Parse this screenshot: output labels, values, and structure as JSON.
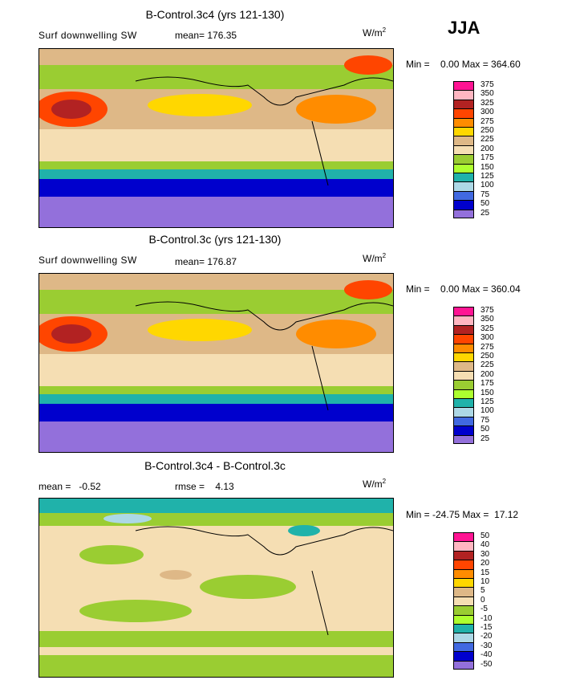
{
  "season": "JJA",
  "panels": [
    {
      "title": "B-Control.3c4 (yrs 121-130)",
      "left_label": "Surf downwelling SW",
      "mean_text": "mean= 176.35",
      "units_base": "W/m",
      "units_exp": "2",
      "range_text": "Min =    0.00 Max = 364.60",
      "legend": [
        "375",
        "350",
        "325",
        "300",
        "275",
        "250",
        "225",
        "200",
        "175",
        "150",
        "125",
        "100",
        "75",
        "50",
        "25"
      ],
      "colors": [
        "#ff1493",
        "#ffb6c1",
        "#b22222",
        "#ff4500",
        "#ff8c00",
        "#ffd700",
        "#deb887",
        "#f5deb3",
        "#9acd32",
        "#adff2f",
        "#20b2aa",
        "#add8e6",
        "#4169e1",
        "#0000cd",
        "#9370db"
      ]
    },
    {
      "title": "B-Control.3c (yrs 121-130)",
      "left_label": "Surf downwelling SW",
      "mean_text": "mean= 176.87",
      "units_base": "W/m",
      "units_exp": "2",
      "range_text": "Min =    0.00 Max = 360.04",
      "legend": [
        "375",
        "350",
        "325",
        "300",
        "275",
        "250",
        "225",
        "200",
        "175",
        "150",
        "125",
        "100",
        "75",
        "50",
        "25"
      ],
      "colors": [
        "#ff1493",
        "#ffb6c1",
        "#b22222",
        "#ff4500",
        "#ff8c00",
        "#ffd700",
        "#deb887",
        "#f5deb3",
        "#9acd32",
        "#adff2f",
        "#20b2aa",
        "#add8e6",
        "#4169e1",
        "#0000cd",
        "#9370db"
      ]
    },
    {
      "title": "B-Control.3c4 - B-Control.3c",
      "left_label": "mean =   -0.52",
      "mean_text": "rmse =    4.13",
      "units_base": "W/m",
      "units_exp": "2",
      "range_text": "Min = -24.75 Max =  17.12",
      "legend": [
        "50",
        "40",
        "30",
        "20",
        "15",
        "10",
        "5",
        "0",
        "-5",
        "-10",
        "-15",
        "-20",
        "-30",
        "-40",
        "-50"
      ],
      "colors": [
        "#ff1493",
        "#ffb6c1",
        "#b22222",
        "#ff4500",
        "#ff8c00",
        "#ffd700",
        "#deb887",
        "#f5deb3",
        "#9acd32",
        "#adff2f",
        "#20b2aa",
        "#add8e6",
        "#4169e1",
        "#0000cd",
        "#9370db"
      ]
    }
  ]
}
